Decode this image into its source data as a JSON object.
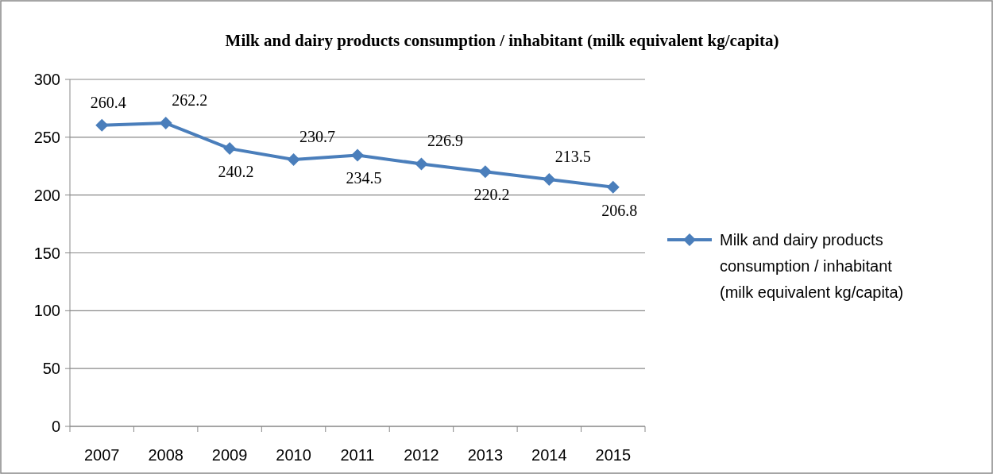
{
  "chart_data": {
    "type": "line",
    "title": "Milk and dairy products consumption / inhabitant (milk equivalent kg/capita)",
    "categories": [
      "2007",
      "2008",
      "2009",
      "2010",
      "2011",
      "2012",
      "2013",
      "2014",
      "2015"
    ],
    "series": [
      {
        "name": "Milk and dairy products consumption / inhabitant (milk equivalent kg/capita)",
        "color": "#4a7ebb",
        "values": [
          260.4,
          262.2,
          240.2,
          230.7,
          234.5,
          226.9,
          220.2,
          213.5,
          206.8
        ]
      }
    ],
    "ylim": [
      0,
      300
    ],
    "yticks": [
      0,
      50,
      100,
      150,
      200,
      250,
      300
    ],
    "grid": "y",
    "legend": "right",
    "marker": "diamond",
    "line_style": "solid",
    "data_labels": true
  }
}
